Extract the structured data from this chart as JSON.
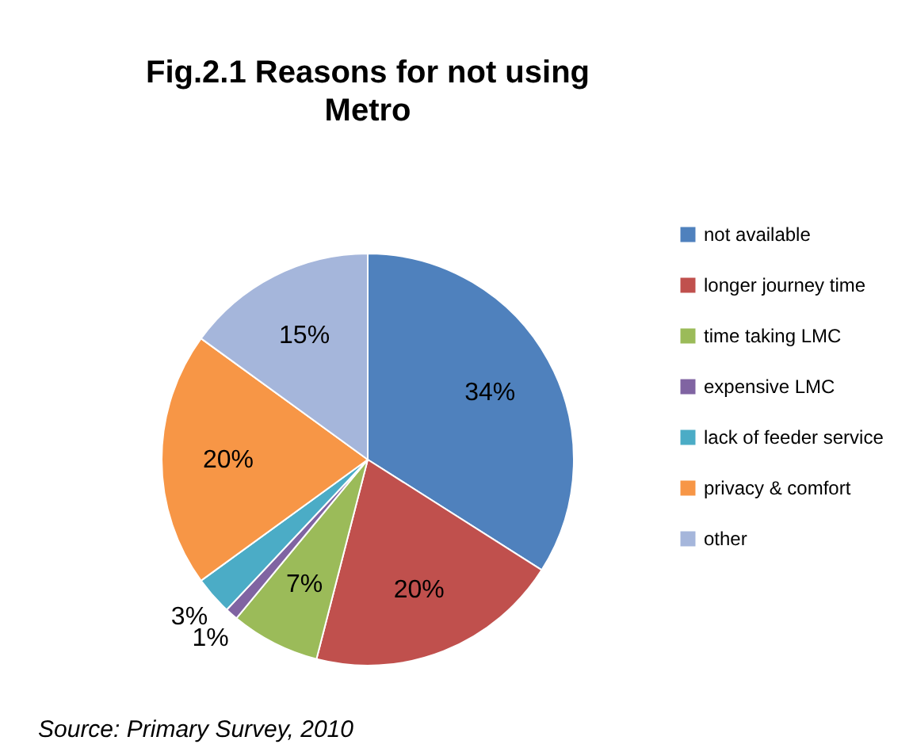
{
  "chart_data": {
    "type": "pie",
    "title": "Fig.2.1 Reasons for not using Metro",
    "categories": [
      "not available",
      "longer journey time",
      "time taking LMC",
      "expensive LMC",
      "lack of feeder service",
      "privacy & comfort",
      "other"
    ],
    "values": [
      34,
      20,
      7,
      1,
      3,
      20,
      15
    ],
    "value_labels": [
      "34%",
      "20%",
      "7%",
      "1%",
      "3%",
      "20%",
      "15%"
    ],
    "colors": [
      "#4f81bd",
      "#c0504d",
      "#9bbb59",
      "#8064a2",
      "#4bacc6",
      "#f79646",
      "#a5b6db"
    ],
    "legend": "right",
    "annotations": [
      "Source: Primary Survey, 2010"
    ]
  }
}
